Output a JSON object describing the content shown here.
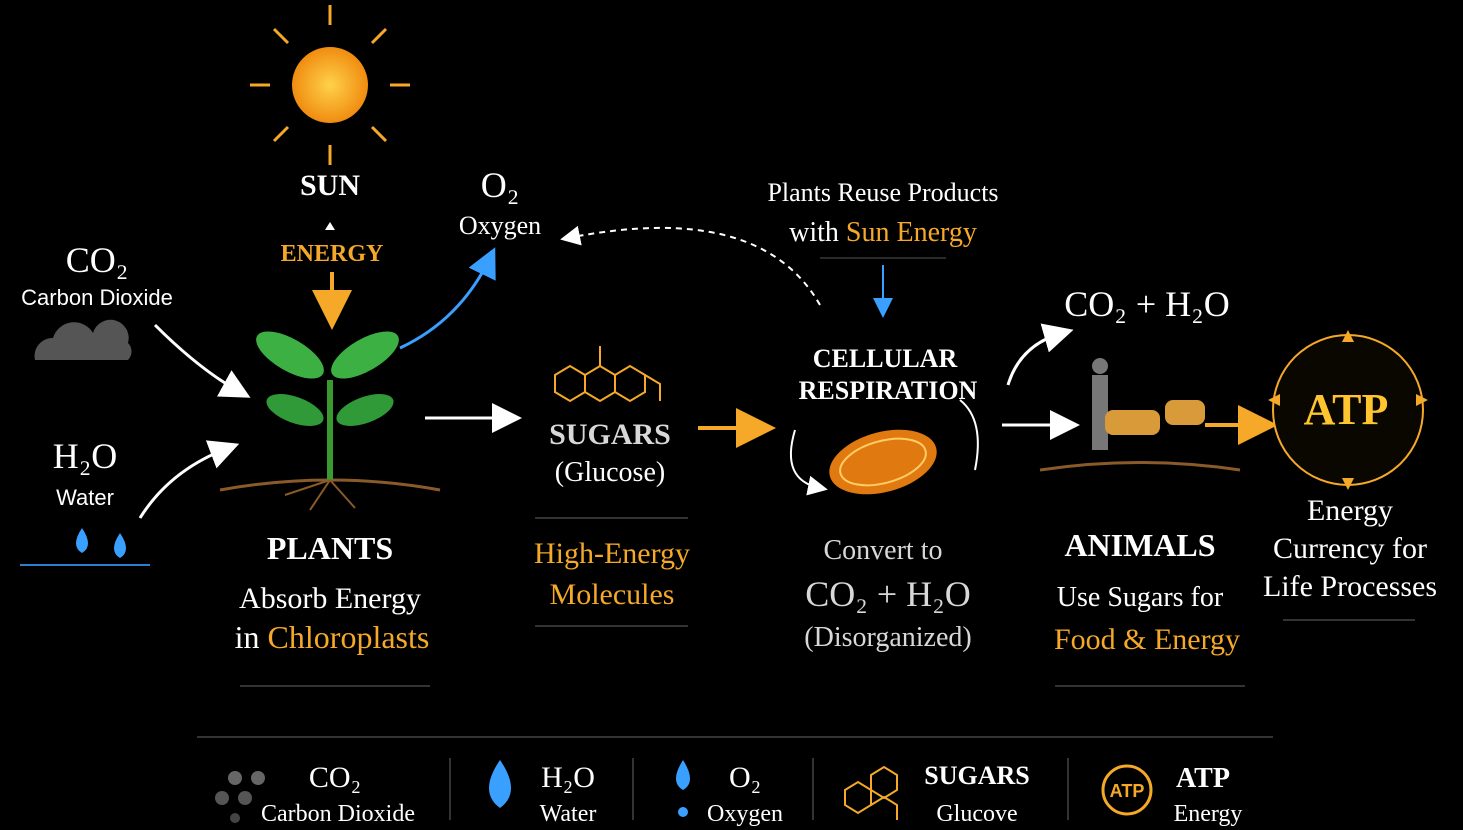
{
  "sun": {
    "label": "SUN",
    "energy": "ENERGY"
  },
  "co2": {
    "formula": "CO₂",
    "name": "Carbon Dioxide"
  },
  "h2o": {
    "formula": "H₂O",
    "name": "Water"
  },
  "o2": {
    "formula": "O₂",
    "name": "Oxygen"
  },
  "reuse": {
    "line1": "Plants Reuse Products",
    "prefix": "with",
    "highlight": "Sun Energy"
  },
  "plants": {
    "title": "PLANTS",
    "line1": "Absorb Energy",
    "prefix": "in",
    "highlight": "Chloroplasts"
  },
  "sugars": {
    "title": "SUGARS",
    "subtitle": "(Glucose)",
    "line1": "High-Energy",
    "line2": "Molecules"
  },
  "respiration": {
    "title1": "CELLULAR",
    "title2": "RESPIRATION",
    "line1": "Convert to",
    "line2": "CO₂ + H₂O",
    "line3": "(Disorganized)"
  },
  "products": {
    "label": "CO₂ + H₂O"
  },
  "animals": {
    "title": "ANIMALS",
    "line1": "Use Sugars for",
    "line2": "Food & Energy"
  },
  "atp": {
    "label": "ATP",
    "line1": "Energy",
    "line2": "Currency for",
    "line3": "Life Processes"
  },
  "legend": [
    {
      "label": "CO₂",
      "name": "Carbon Dioxide"
    },
    {
      "label": "H₂O",
      "name": "Water"
    },
    {
      "label": "O₂",
      "name": "Oxygen"
    },
    {
      "label": "SUGARS",
      "name": "Glucove"
    },
    {
      "icon": "ATP",
      "label": "ATP",
      "name": "Energy"
    }
  ]
}
